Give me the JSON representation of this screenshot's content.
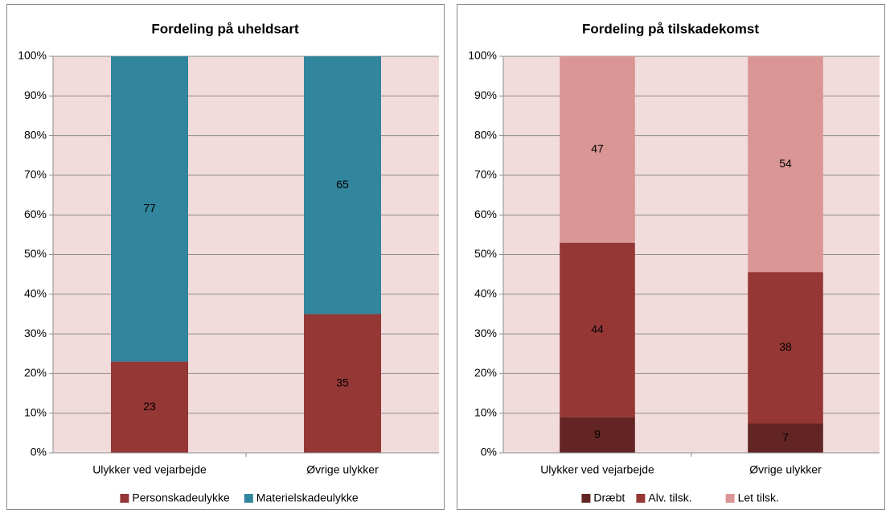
{
  "chart_data": [
    {
      "type": "stacked_bar",
      "title": "Fordeling på uheldsart",
      "categories": [
        "Ulykker ved vejarbejde",
        "Øvrige ulykker"
      ],
      "series": [
        {
          "name": "Personskadeulykke",
          "color": "#953735",
          "values": [
            23,
            35
          ]
        },
        {
          "name": "Materielskadeulykke",
          "color": "#31859c",
          "values": [
            77,
            65
          ]
        }
      ],
      "ylim": [
        0,
        100
      ],
      "yticks": [
        {
          "value": 0,
          "label": "0%"
        },
        {
          "value": 10,
          "label": "10%"
        },
        {
          "value": 20,
          "label": "20%"
        },
        {
          "value": 30,
          "label": "30%"
        },
        {
          "value": 40,
          "label": "40%"
        },
        {
          "value": 50,
          "label": "50%"
        },
        {
          "value": 60,
          "label": "60%"
        },
        {
          "value": 70,
          "label": "70%"
        },
        {
          "value": 80,
          "label": "80%"
        },
        {
          "value": 90,
          "label": "90%"
        },
        {
          "value": 100,
          "label": "100%"
        }
      ],
      "grid": true,
      "legend": "bottom"
    },
    {
      "type": "stacked_bar",
      "title": "Fordeling på tilskadekomst",
      "categories": [
        "Ulykker ved vejarbejde",
        "Øvrige ulykker"
      ],
      "series": [
        {
          "name": "Dræbt",
          "color": "#632523",
          "values": [
            9,
            7.4
          ],
          "value_labels": [
            "9",
            "7"
          ]
        },
        {
          "name": "Alv. tilsk.",
          "color": "#953735",
          "values": [
            44,
            38.2
          ],
          "value_labels": [
            "44",
            "38"
          ]
        },
        {
          "name": "Let tilsk.",
          "color": "#d99694",
          "values": [
            47,
            54.4
          ],
          "value_labels": [
            "47",
            "54"
          ]
        }
      ],
      "ylim": [
        0,
        100
      ],
      "yticks": [
        {
          "value": 0,
          "label": "0%"
        },
        {
          "value": 10,
          "label": "10%"
        },
        {
          "value": 20,
          "label": "20%"
        },
        {
          "value": 30,
          "label": "30%"
        },
        {
          "value": 40,
          "label": "40%"
        },
        {
          "value": 50,
          "label": "50%"
        },
        {
          "value": 60,
          "label": "60%"
        },
        {
          "value": 70,
          "label": "70%"
        },
        {
          "value": 80,
          "label": "80%"
        },
        {
          "value": 90,
          "label": "90%"
        },
        {
          "value": 100,
          "label": "100%"
        }
      ],
      "grid": true,
      "legend": "bottom"
    }
  ]
}
